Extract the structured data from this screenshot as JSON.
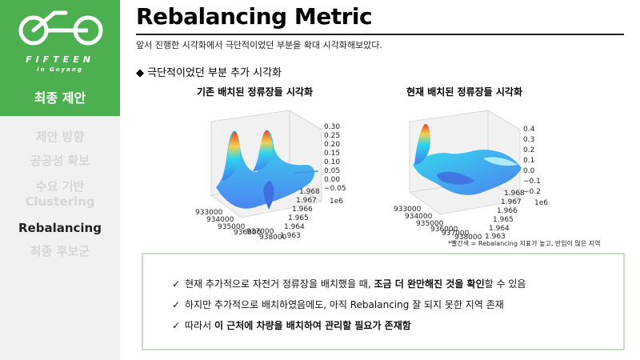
{
  "brand": {
    "name": "FIFTEEN",
    "subname": "in Goyang"
  },
  "sidebar": {
    "active": "최종 제안",
    "items": [
      {
        "label": "제안 방향"
      },
      {
        "label": "공공성 확보"
      },
      {
        "label": "수요 기반"
      },
      {
        "label": "Clustering"
      },
      {
        "label": "Rebalancing"
      },
      {
        "label": "최종 후보군"
      }
    ]
  },
  "header": {
    "title": "Rebalancing Metric",
    "subtitle": "앞서 진행한 시각화에서 극단적이었던 부분을 확대 시각화해보았다."
  },
  "section": {
    "heading": "◆ 극단적이었던 부분 추가 시각화"
  },
  "plots": {
    "left": {
      "title": "기존 배치된 정류장들 시각화",
      "x_ticks": [
        "933000",
        "934000",
        "935000",
        "936000",
        "937000",
        "938000"
      ],
      "y_ticks": [
        "1.968",
        "1.967",
        "1.966",
        "1.965",
        "1.964",
        "1.963"
      ],
      "z_ticks": [
        "0.30",
        "0.25",
        "0.20",
        "0.15",
        "0.10",
        "0.05",
        "0.00",
        "−0.05"
      ],
      "y_exp": "1e6"
    },
    "right": {
      "title": "현재 배치된 정류장들 시각화",
      "x_ticks": [
        "933000",
        "934000",
        "935000",
        "936000",
        "937000",
        "938000"
      ],
      "y_ticks": [
        "1.968",
        "1.967",
        "1.966",
        "1.965",
        "1.964",
        "1.963"
      ],
      "z_ticks": [
        "0.4",
        "0.3",
        "0.2",
        "0.1",
        "0.0",
        "−0.1",
        "−0.2"
      ],
      "y_exp": "1e6"
    },
    "note": "*빨간색 = Rebalancing 지표가 높고, 반입이 많은 지역"
  },
  "summary": {
    "check": "✓",
    "line1_pre": "현재 추가적으로 자전거 정류장을 배치했을 때, ",
    "line1_bold": "조금 더 완만해진 것을 확인",
    "line1_post": "할 수 있음",
    "line2": "하지만 추가적으로 배치하였음에도, 아직 Rebalancing 잘 되지 못한 지역 존재",
    "line3_pre": "따라서 ",
    "line3_bold": "이 근처에 차량을 배치하여 관리할 필요가 존재함"
  },
  "colors": {
    "accent": "#4caf50",
    "sidebar_bg": "#f1f1f1",
    "muted": "#d6d6d6"
  }
}
